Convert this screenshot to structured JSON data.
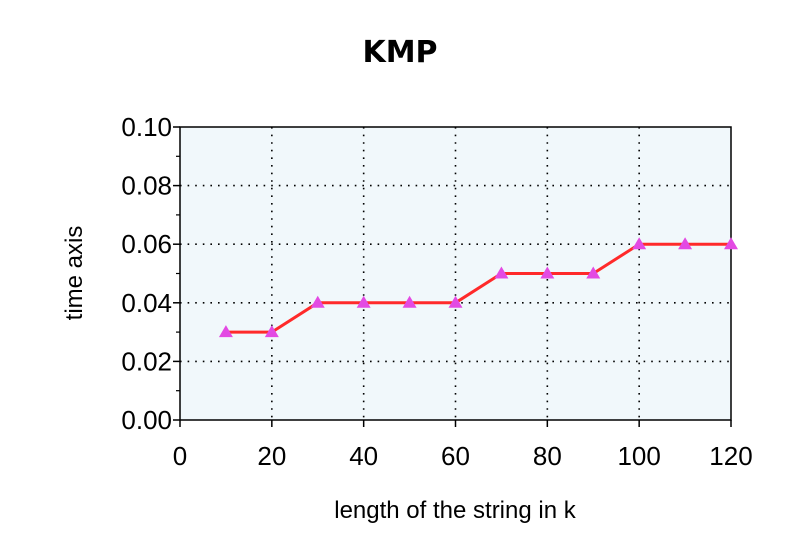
{
  "chart_data": {
    "type": "line",
    "title": "KMP",
    "xlabel": "length of the string in k",
    "ylabel": "time axis",
    "xlim": [
      0,
      120
    ],
    "ylim": [
      0,
      0.1
    ],
    "x_ticks": [
      "0",
      "20",
      "40",
      "60",
      "80",
      "100",
      "120"
    ],
    "y_ticks": [
      "0.00",
      "0.02",
      "0.04",
      "0.06",
      "0.08",
      "0.10"
    ],
    "grid": true,
    "series": [
      {
        "x": [
          10,
          20,
          30,
          40,
          50,
          60,
          70,
          80,
          90,
          100,
          110,
          120
        ],
        "y": [
          0.03,
          0.03,
          0.04,
          0.04,
          0.04,
          0.04,
          0.05,
          0.05,
          0.05,
          0.06,
          0.06,
          0.06
        ],
        "line_color": "#ff2a2a",
        "marker_color": "#e34ae3",
        "marker": "triangle"
      }
    ],
    "plot_background": "#f1f8fb"
  }
}
